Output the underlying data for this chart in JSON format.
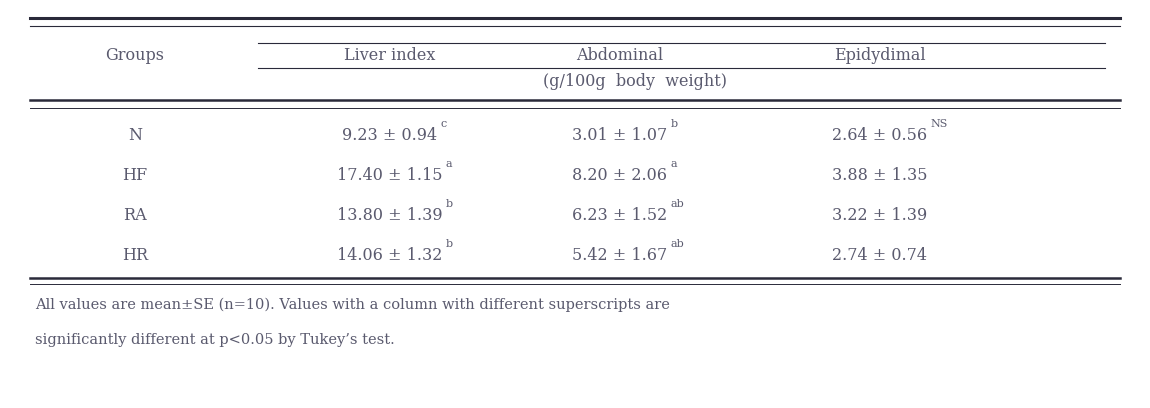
{
  "col_headers": [
    "Groups",
    "Liver index",
    "Abdominal",
    "Epidydimal"
  ],
  "sub_header": "(g/100g  body  weight)",
  "rows": [
    {
      "group": "N",
      "liver": "9.23 ± 0.94",
      "liver_sup": "c",
      "abdominal": "3.01 ± 1.07",
      "abdominal_sup": "b",
      "epidydimal": "2.64 ± 0.56",
      "epidydimal_sup": "NS"
    },
    {
      "group": "HF",
      "liver": "17.40 ± 1.15",
      "liver_sup": "a",
      "abdominal": "8.20 ± 2.06",
      "abdominal_sup": "a",
      "epidydimal": "3.88 ± 1.35",
      "epidydimal_sup": ""
    },
    {
      "group": "RA",
      "liver": "13.80 ± 1.39",
      "liver_sup": "b",
      "abdominal": "6.23 ± 1.52",
      "abdominal_sup": "ab",
      "epidydimal": "3.22 ± 1.39",
      "epidydimal_sup": ""
    },
    {
      "group": "HR",
      "liver": "14.06 ± 1.32",
      "liver_sup": "b",
      "abdominal": "5.42 ± 1.67",
      "abdominal_sup": "ab",
      "epidydimal": "2.74 ± 0.74",
      "epidydimal_sup": ""
    }
  ],
  "footnote_line1": "All values are mean±SE (n=10). Values with a column with different superscripts are",
  "footnote_line2": "significantly different at p<0.05 by Tukey’s test.",
  "bg_color": "#ffffff",
  "text_color": "#5a5a6e",
  "line_color": "#2a2a3a",
  "font_size": 11.5,
  "sup_font_size": 8,
  "footnote_font_size": 10.5
}
